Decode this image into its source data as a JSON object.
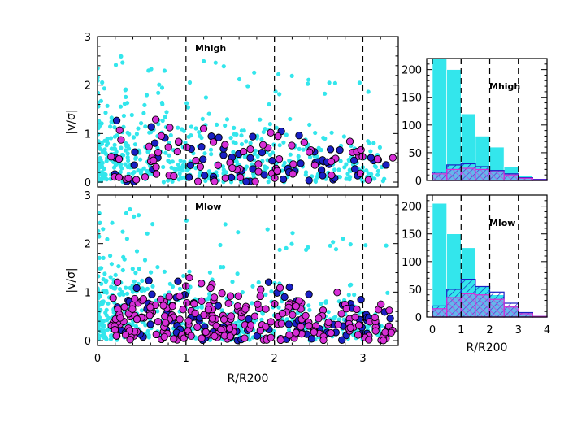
{
  "chart_data": [
    {
      "type": "scatter",
      "panel": "top-left",
      "label": "Mhigh",
      "xlabel": "",
      "ylabel": "|v/σ|",
      "xlim": [
        0,
        3.4
      ],
      "ylim": [
        -0.1,
        3.0
      ],
      "x_ticks": [
        "0",
        "1",
        "2",
        "3"
      ],
      "y_ticks": [
        "0",
        "1",
        "2",
        "3"
      ],
      "vlines": [
        1,
        2,
        3
      ],
      "series": [
        {
          "color": "#33e6ec",
          "marker": "small-dot",
          "count": 560
        },
        {
          "color": "#1a1fc4",
          "marker": "circle-outlined",
          "count": 70
        },
        {
          "color": "#d62ed6",
          "marker": "circle-outlined",
          "count": 75
        }
      ]
    },
    {
      "type": "scatter",
      "panel": "bottom-left",
      "label": "Mlow",
      "xlabel": "R/R200",
      "ylabel": "|v/σ|",
      "xlim": [
        0,
        3.4
      ],
      "ylim": [
        -0.1,
        3.0
      ],
      "x_ticks": [
        "0",
        "1",
        "2",
        "3"
      ],
      "y_ticks": [
        "0",
        "1",
        "2",
        "3"
      ],
      "vlines": [
        1,
        2,
        3
      ],
      "series": [
        {
          "color": "#33e6ec",
          "marker": "small-dot",
          "count": 560
        },
        {
          "color": "#1a1fc4",
          "marker": "circle-outlined",
          "count": 100
        },
        {
          "color": "#d62ed6",
          "marker": "circle-outlined",
          "count": 230
        }
      ]
    },
    {
      "type": "bar",
      "panel": "top-right",
      "label": "Mhigh",
      "xlabel": "",
      "ylabel": "",
      "bin_edges": [
        0,
        0.5,
        1,
        1.5,
        2,
        2.5,
        3,
        3.5,
        4
      ],
      "xlim": [
        -0.2,
        4.0
      ],
      "ylim": [
        0,
        220
      ],
      "y_ticks": [
        "0",
        "50",
        "100",
        "150",
        "200"
      ],
      "vlines": [
        1,
        2,
        3
      ],
      "series": [
        {
          "style": "filled",
          "color": "#33e6ec",
          "values": [
            220,
            200,
            120,
            80,
            60,
            25,
            8,
            3
          ]
        },
        {
          "style": "hatched",
          "color": "#1a1fc4",
          "values": [
            15,
            28,
            30,
            25,
            18,
            12,
            5,
            2
          ]
        },
        {
          "style": "hatched",
          "color": "#d62ed6",
          "values": [
            12,
            20,
            22,
            20,
            16,
            10,
            4,
            1
          ]
        }
      ]
    },
    {
      "type": "bar",
      "panel": "bottom-right",
      "label": "Mlow",
      "xlabel": "R/R200",
      "ylabel": "",
      "bin_edges": [
        0,
        0.5,
        1,
        1.5,
        2,
        2.5,
        3,
        3.5,
        4
      ],
      "xlim": [
        -0.2,
        4.0
      ],
      "ylim": [
        0,
        220
      ],
      "x_ticks": [
        "0",
        "1",
        "2",
        "3",
        "4"
      ],
      "y_ticks": [
        "0",
        "50",
        "100",
        "150",
        "200"
      ],
      "vlines": [
        1,
        2,
        3
      ],
      "series": [
        {
          "style": "filled",
          "color": "#33e6ec",
          "values": [
            205,
            150,
            125,
            55,
            40,
            20,
            8,
            2
          ]
        },
        {
          "style": "hatched",
          "color": "#1a1fc4",
          "values": [
            20,
            50,
            68,
            55,
            45,
            25,
            8,
            1
          ]
        },
        {
          "style": "hatched",
          "color": "#d62ed6",
          "values": [
            15,
            35,
            42,
            40,
            32,
            18,
            6,
            1
          ]
        }
      ]
    }
  ]
}
